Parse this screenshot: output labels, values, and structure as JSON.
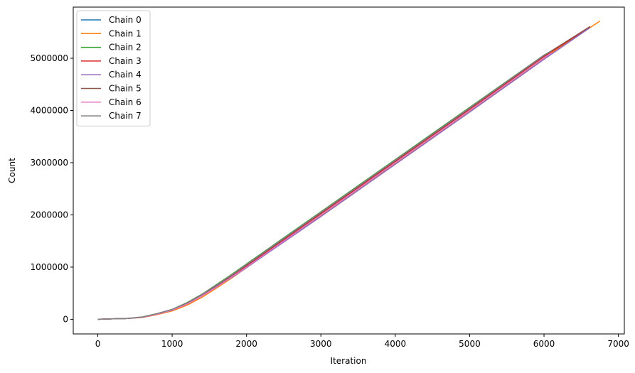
{
  "chart_data": {
    "type": "line",
    "title": "",
    "xlabel": "Iteration",
    "ylabel": "Count",
    "xlim": [
      -330,
      7080
    ],
    "ylim": [
      -280000,
      5980000
    ],
    "x_ticks": [
      0,
      1000,
      2000,
      3000,
      4000,
      5000,
      6000,
      7000
    ],
    "x_tick_labels": [
      "0",
      "1000",
      "2000",
      "3000",
      "4000",
      "5000",
      "6000",
      "7000"
    ],
    "y_ticks": [
      0,
      1000000,
      2000000,
      3000000,
      4000000,
      5000000
    ],
    "y_tick_labels": [
      "0",
      "1000000",
      "2000000",
      "3000000",
      "4000000",
      "5000000"
    ],
    "grid": false,
    "legend": "top-left",
    "series": [
      {
        "name": "Chain 0",
        "color": "#1f77b4",
        "x": [
          0,
          200,
          400,
          600,
          800,
          1000,
          1200,
          1400,
          1600,
          1800,
          2000,
          2500,
          3000,
          4000,
          5000,
          6000,
          6620
        ],
        "y": [
          0,
          10000,
          15000,
          40000,
          100000,
          180000,
          300000,
          460000,
          640000,
          830000,
          1030000,
          1530000,
          2030000,
          3030000,
          4030000,
          5040000,
          5600000
        ]
      },
      {
        "name": "Chain 1",
        "color": "#ff7f0e",
        "x": [
          0,
          200,
          400,
          600,
          800,
          1000,
          1200,
          1400,
          1600,
          1800,
          2000,
          2500,
          3000,
          4000,
          5000,
          6000,
          6750
        ],
        "y": [
          0,
          10000,
          15000,
          35000,
          90000,
          160000,
          270000,
          420000,
          600000,
          790000,
          990000,
          1490000,
          1990000,
          2990000,
          3990000,
          5000000,
          5710000
        ]
      },
      {
        "name": "Chain 2",
        "color": "#2ca02c",
        "x": [
          0,
          200,
          400,
          600,
          800,
          1000,
          1200,
          1400,
          1600,
          1800,
          2000,
          2500,
          3000,
          4000,
          5000,
          6000,
          6100
        ],
        "y": [
          0,
          10000,
          15000,
          45000,
          110000,
          190000,
          320000,
          480000,
          670000,
          860000,
          1060000,
          1560000,
          2060000,
          3060000,
          4060000,
          5060000,
          5140000
        ]
      },
      {
        "name": "Chain 3",
        "color": "#d62728",
        "x": [
          0,
          200,
          400,
          600,
          800,
          1000,
          1200,
          1400,
          1600,
          1800,
          2000,
          2500,
          3000,
          4000,
          5000,
          6000,
          6620
        ],
        "y": [
          0,
          10000,
          15000,
          40000,
          100000,
          175000,
          295000,
          450000,
          630000,
          820000,
          1020000,
          1520000,
          2020000,
          3020000,
          4020000,
          5030000,
          5600000
        ]
      },
      {
        "name": "Chain 4",
        "color": "#9467bd",
        "x": [
          0,
          200,
          400,
          600,
          800,
          1000,
          1200,
          1400,
          1600,
          1800,
          2000,
          2500,
          3000,
          4000,
          5000,
          6000,
          6620
        ],
        "y": [
          0,
          10000,
          15000,
          40000,
          100000,
          180000,
          300000,
          460000,
          630000,
          800000,
          990000,
          1480000,
          1970000,
          2970000,
          3970000,
          4980000,
          5590000
        ]
      },
      {
        "name": "Chain 5",
        "color": "#8c564b",
        "x": [
          0,
          200,
          400,
          600,
          800,
          1000,
          1200,
          1400,
          1600,
          1800,
          2000,
          2500,
          3000,
          4000,
          5000,
          6000,
          6620
        ],
        "y": [
          0,
          10000,
          15000,
          45000,
          105000,
          185000,
          310000,
          470000,
          650000,
          840000,
          1040000,
          1540000,
          2040000,
          3040000,
          4040000,
          5050000,
          5610000
        ]
      },
      {
        "name": "Chain 6",
        "color": "#e377c2",
        "x": [
          0,
          200,
          400,
          600,
          800,
          1000,
          1200,
          1400,
          1600,
          1800,
          2000,
          2500,
          3000,
          4000,
          5000,
          6000,
          6100
        ],
        "y": [
          0,
          10000,
          15000,
          40000,
          100000,
          175000,
          290000,
          445000,
          620000,
          810000,
          1000000,
          1500000,
          2000000,
          3000000,
          4000000,
          5010000,
          5100000
        ]
      },
      {
        "name": "Chain 7",
        "color": "#7f7f7f",
        "x": [
          0,
          200,
          400,
          600,
          800,
          1000,
          1200,
          1400,
          1600,
          1800,
          2000,
          2500,
          3000,
          4000,
          5000,
          6000,
          6100
        ],
        "y": [
          0,
          10000,
          15000,
          45000,
          110000,
          190000,
          315000,
          475000,
          660000,
          850000,
          1050000,
          1550000,
          2050000,
          3050000,
          4050000,
          5060000,
          5140000
        ]
      }
    ]
  }
}
